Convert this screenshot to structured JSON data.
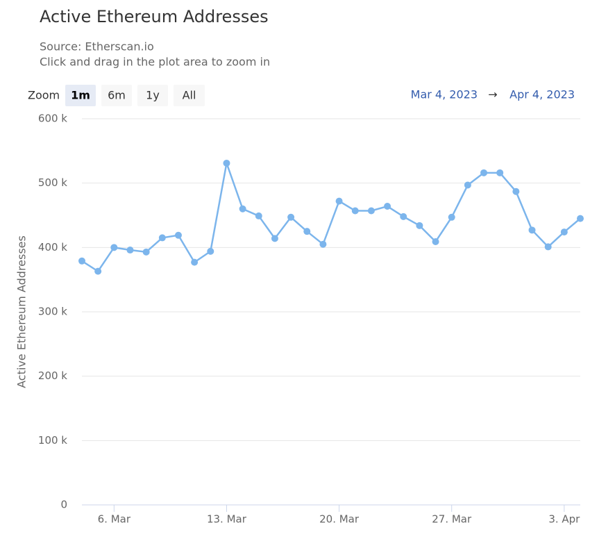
{
  "chart_data": {
    "type": "line",
    "title": "Active Ethereum Addresses",
    "subtitle": "Source: Etherscan.io",
    "hint": "Click and drag in the plot area to zoom in",
    "range_selector": {
      "label": "Zoom",
      "buttons": [
        "1m",
        "6m",
        "1y",
        "All"
      ],
      "selected": 0
    },
    "date_range": {
      "from": "Mar 4, 2023",
      "arrow": "→",
      "to": "Apr 4, 2023"
    },
    "y_label": "Active Ethereum Addresses",
    "x": [
      "2023-03-04",
      "2023-03-05",
      "2023-03-06",
      "2023-03-07",
      "2023-03-08",
      "2023-03-09",
      "2023-03-10",
      "2023-03-11",
      "2023-03-12",
      "2023-03-13",
      "2023-03-14",
      "2023-03-15",
      "2023-03-16",
      "2023-03-17",
      "2023-03-18",
      "2023-03-19",
      "2023-03-20",
      "2023-03-21",
      "2023-03-22",
      "2023-03-23",
      "2023-03-24",
      "2023-03-25",
      "2023-03-26",
      "2023-03-27",
      "2023-03-28",
      "2023-03-29",
      "2023-03-30",
      "2023-03-31",
      "2023-04-01",
      "2023-04-02",
      "2023-04-03",
      "2023-04-04"
    ],
    "values": [
      379000,
      363000,
      400000,
      396000,
      393000,
      415000,
      419000,
      377000,
      394000,
      531000,
      460000,
      449000,
      414000,
      447000,
      425000,
      405000,
      472000,
      457000,
      457000,
      464000,
      448000,
      434000,
      409000,
      447000,
      497000,
      516000,
      516000,
      487000,
      427000,
      401000,
      424000,
      445000
    ],
    "color": "#7cb5ec",
    "xlim": [
      "2023-03-04",
      "2023-04-04"
    ],
    "xticks": [
      {
        "value": "2023-03-06",
        "label": "6. Mar"
      },
      {
        "value": "2023-03-13",
        "label": "13. Mar"
      },
      {
        "value": "2023-03-20",
        "label": "20. Mar"
      },
      {
        "value": "2023-03-27",
        "label": "27. Mar"
      },
      {
        "value": "2023-04-03",
        "label": "3. Apr"
      }
    ],
    "ylim": [
      0,
      600000
    ],
    "yticks": [
      0,
      {
        "value": 100000,
        "label": "100 k"
      },
      {
        "value": 200000,
        "label": "200 k"
      },
      {
        "value": 300000,
        "label": "300 k"
      },
      {
        "value": 400000,
        "label": "400 k"
      },
      {
        "value": 500000,
        "label": "500 k"
      },
      {
        "value": 600000,
        "label": "600 k"
      }
    ],
    "grid": true
  }
}
